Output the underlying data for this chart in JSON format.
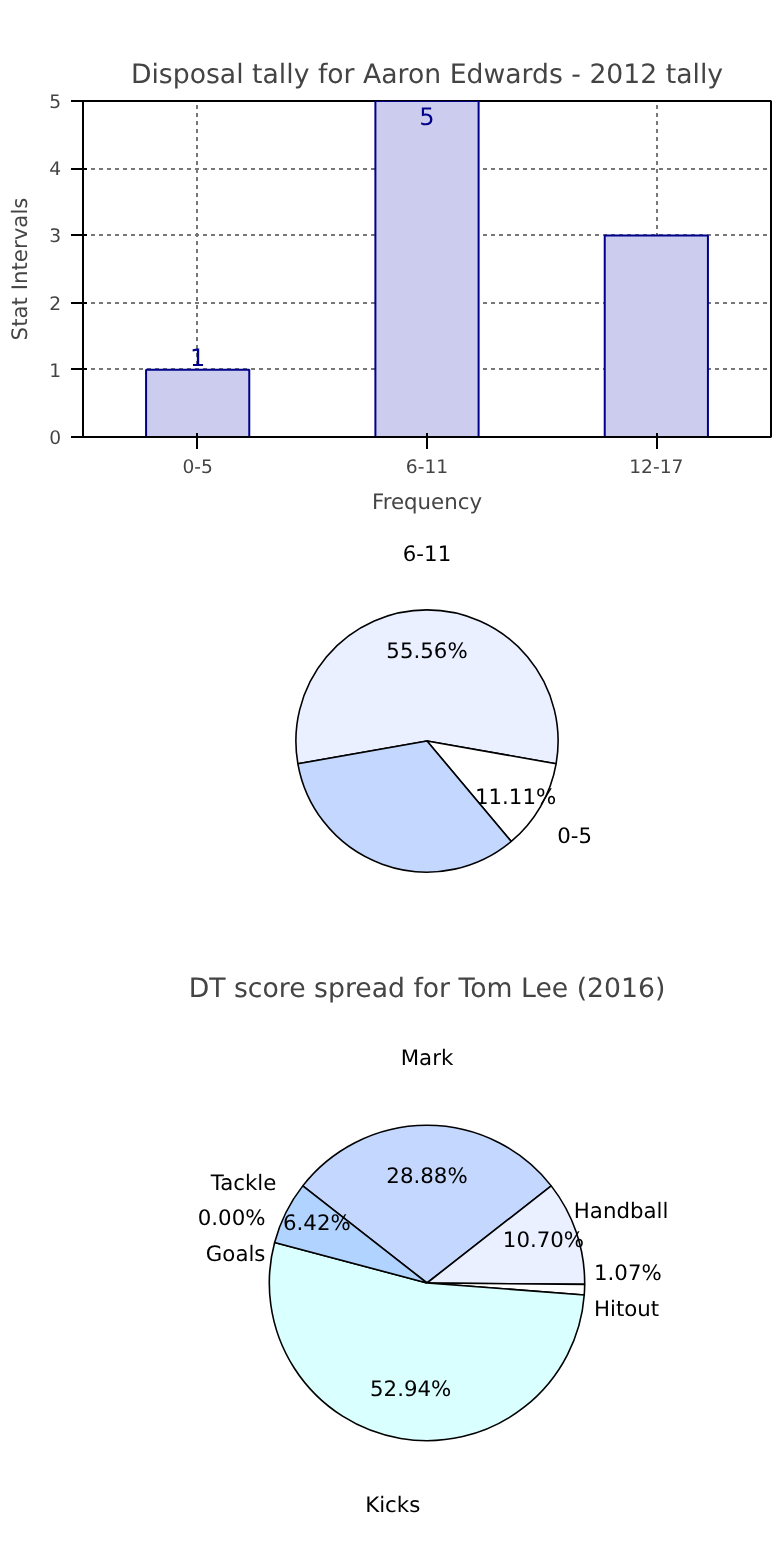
{
  "chart_data": [
    {
      "type": "bar",
      "title": "Disposal tally for Aaron Edwards - 2012 tally",
      "xlabel": "Frequency",
      "ylabel": "Stat Intervals",
      "categories": [
        "0-5",
        "6-11",
        "12-17"
      ],
      "values": [
        1,
        5,
        3
      ],
      "value_labels": [
        "1",
        "5",
        null
      ],
      "color": "#ccccee",
      "ylim": [
        0,
        5
      ],
      "yticks": [
        0,
        1,
        2,
        3,
        4,
        5
      ],
      "grid": true
    },
    {
      "type": "pie",
      "categories": [
        "6-11",
        "0-5",
        null
      ],
      "values": [
        55.56,
        11.11,
        33.33
      ],
      "value_labels": [
        "55.56%",
        "11.11%",
        null
      ],
      "colors": [
        "#eaf0ff",
        "#ffffff",
        "#c4d8ff"
      ]
    },
    {
      "type": "pie",
      "title": "DT score spread for Tom Lee (2016)",
      "categories": [
        "Mark",
        "Handball",
        "Hitout",
        "Kicks",
        "Goals",
        "Tackle"
      ],
      "values": [
        28.88,
        10.7,
        1.07,
        52.94,
        0.0,
        6.42
      ],
      "value_labels": [
        "28.88%",
        "10.70%",
        "1.07%",
        "52.94%",
        "0.00%",
        "6.42%"
      ],
      "colors": [
        "#c4d8ff",
        "#eaf0ff",
        "#ffffff",
        "#d9ffff",
        "#ffffff",
        "#b0d4ff"
      ]
    }
  ]
}
